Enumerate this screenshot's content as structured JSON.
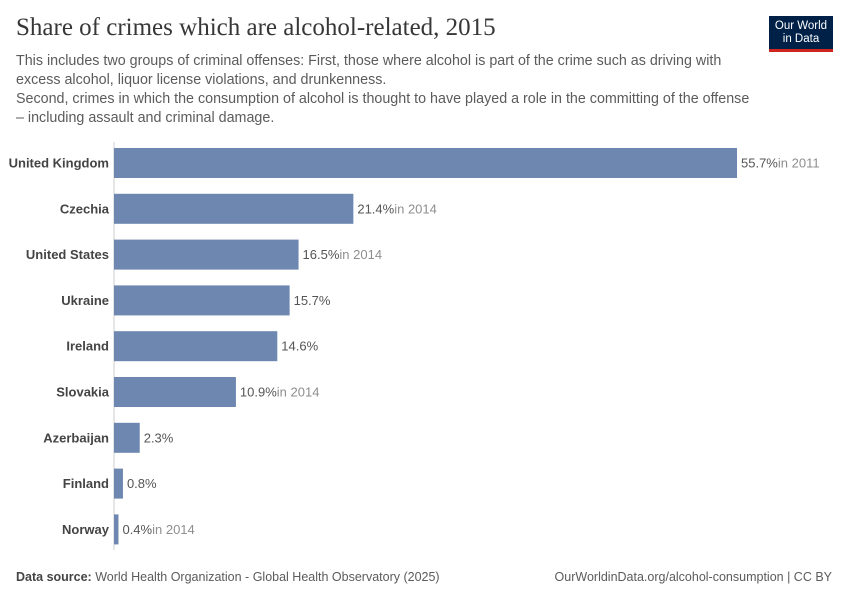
{
  "header": {
    "title": "Share of crimes which are alcohol-related, 2015",
    "subtitle_lines": [
      "This includes two groups of criminal offenses: First, those where alcohol is part of the crime such as driving with excess alcohol, liquor license violations, and drunkenness.",
      "Second, crimes in which the consumption of alcohol is thought to have played a role in the committing of the offense – including assault and criminal damage."
    ],
    "logo_line1": "Our World",
    "logo_line2": "in Data"
  },
  "footer": {
    "source_label": "Data source:",
    "source": "World Health Organization - Global Health Observatory (2025)",
    "url": "OurWorldinData.org/alcohol-consumption | CC BY"
  },
  "chart_data": {
    "type": "bar",
    "orientation": "horizontal",
    "bar_color": "#6d87b0",
    "categories": [
      "United Kingdom",
      "Czechia",
      "United States",
      "Ukraine",
      "Ireland",
      "Slovakia",
      "Azerbaijan",
      "Finland",
      "Norway"
    ],
    "values": [
      55.7,
      21.4,
      16.5,
      15.7,
      14.6,
      10.9,
      2.3,
      0.8,
      0.4
    ],
    "value_labels": [
      "55.7%",
      "21.4%",
      "16.5%",
      "15.7%",
      "14.6%",
      "10.9%",
      "2.3%",
      "0.8%",
      "0.4%"
    ],
    "year_notes": [
      "in 2011",
      "in 2014",
      "in 2014",
      "",
      "",
      "in 2014",
      "",
      "",
      "in 2014"
    ],
    "unit": "%",
    "xlim": [
      0,
      55.7
    ],
    "grid": false
  }
}
